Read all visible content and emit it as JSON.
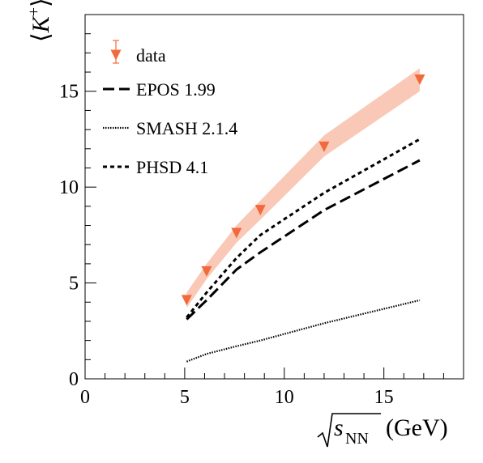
{
  "chart_data": {
    "type": "line",
    "xlabel": "√s_NN (GeV)",
    "ylabel": "⟨K⁺⟩",
    "xlim": [
      0,
      19
    ],
    "ylim": [
      0,
      19
    ],
    "xticks": [
      0,
      5,
      10,
      15
    ],
    "yticks": [
      0,
      5,
      10,
      15
    ],
    "xtick_labels": [
      "0",
      "5",
      "10",
      "15"
    ],
    "ytick_labels": [
      "0",
      "5",
      "10",
      "15"
    ],
    "legend_position": "top-left",
    "data": {
      "name": "data",
      "color": "#f26a3b",
      "band_color": "#f9c8b6",
      "x": [
        5.1,
        6.1,
        7.6,
        8.8,
        12.0,
        16.8
      ],
      "y": [
        4.1,
        5.6,
        7.6,
        8.8,
        12.1,
        15.6
      ],
      "band_low": [
        3.7,
        5.2,
        7.1,
        8.3,
        11.6,
        15.0
      ],
      "band_high": [
        4.5,
        6.0,
        8.0,
        9.3,
        12.7,
        16.2
      ]
    },
    "series": [
      {
        "name": "EPOS 1.99",
        "style": "dashed",
        "x": [
          5.1,
          6.1,
          7.6,
          8.8,
          12.0,
          16.8
        ],
        "y": [
          3.1,
          4.1,
          5.7,
          6.6,
          8.8,
          11.4
        ]
      },
      {
        "name": "SMASH 2.1.4",
        "style": "dotted",
        "x": [
          5.1,
          6.1,
          7.6,
          8.8,
          12.0,
          16.8
        ],
        "y": [
          0.9,
          1.3,
          1.7,
          2.0,
          2.9,
          4.1
        ]
      },
      {
        "name": "PHSD 4.1",
        "style": "small-dashed",
        "x": [
          5.1,
          6.1,
          7.6,
          8.8,
          12.0,
          16.8
        ],
        "y": [
          3.2,
          4.5,
          6.3,
          7.5,
          9.7,
          12.5
        ]
      }
    ]
  }
}
